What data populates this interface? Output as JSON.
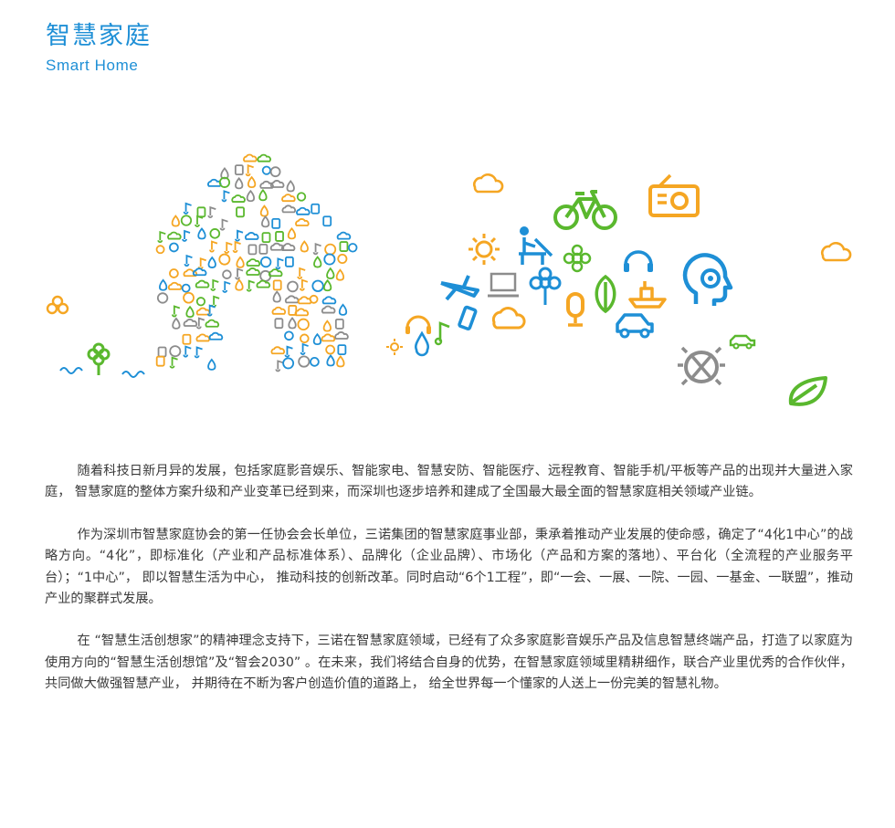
{
  "header": {
    "title_cn": "智慧家庭",
    "title_en": "Smart Home"
  },
  "colors": {
    "brand_blue": "#1e8fd6",
    "green": "#5ab82e",
    "orange": "#f5a623",
    "gray": "#8c8c8c"
  },
  "illustration": {
    "icons": [
      "house-icon-cluster",
      "bicycle-icon",
      "cloud-icon",
      "sun-icon",
      "person-at-desk-icon",
      "radio-icon",
      "head-profile-icon",
      "airplane-icon",
      "laptop-icon",
      "flower-icon",
      "leaf-icon",
      "headphones-icon",
      "boat-icon",
      "car-icon",
      "ladybug-icon",
      "music-note-icon",
      "water-drop-icon",
      "microphone-icon",
      "phone-icon"
    ]
  },
  "paragraphs": [
    "随着科技日新月异的发展，包括家庭影音娱乐、智能家电、智慧安防、智能医疗、远程教育、智能手机/平板等产品的出现并大量进入家庭， 智慧家庭的整体方案升级和产业变革已经到来，而深圳也逐步培养和建成了全国最大最全面的智慧家庭相关领域产业链。",
    "作为深圳市智慧家庭协会的第一任协会会长单位，三诺集团的智慧家庭事业部，秉承着推动产业发展的使命感，确定了“4化1中心”的战略方向。“4化”，即标准化（产业和产品标准体系）、品牌化（企业品牌）、市场化（产品和方案的落地）、平台化（全流程的产业服务平台）；“1中心”， 即以智慧生活为中心， 推动科技的创新改革。同时启动“6个1工程”，即“一会、一展、一院、一园、一基金、一联盟”，推动产业的聚群式发展。",
    "在 “智慧生活创想家”的精神理念支持下，三诺在智慧家庭领域，已经有了众多家庭影音娱乐产品及信息智慧终端产品，打造了以家庭为使用方向的“智慧生活创想馆”及“智会2030” 。在未来，我们将结合自身的优势，在智慧家庭领域里精耕细作，联合产业里优秀的合作伙伴，共同做大做强智慧产业， 并期待在不断为客户创造价值的道路上， 给全世界每一个懂家的人送上一份完美的智慧礼物。"
  ]
}
